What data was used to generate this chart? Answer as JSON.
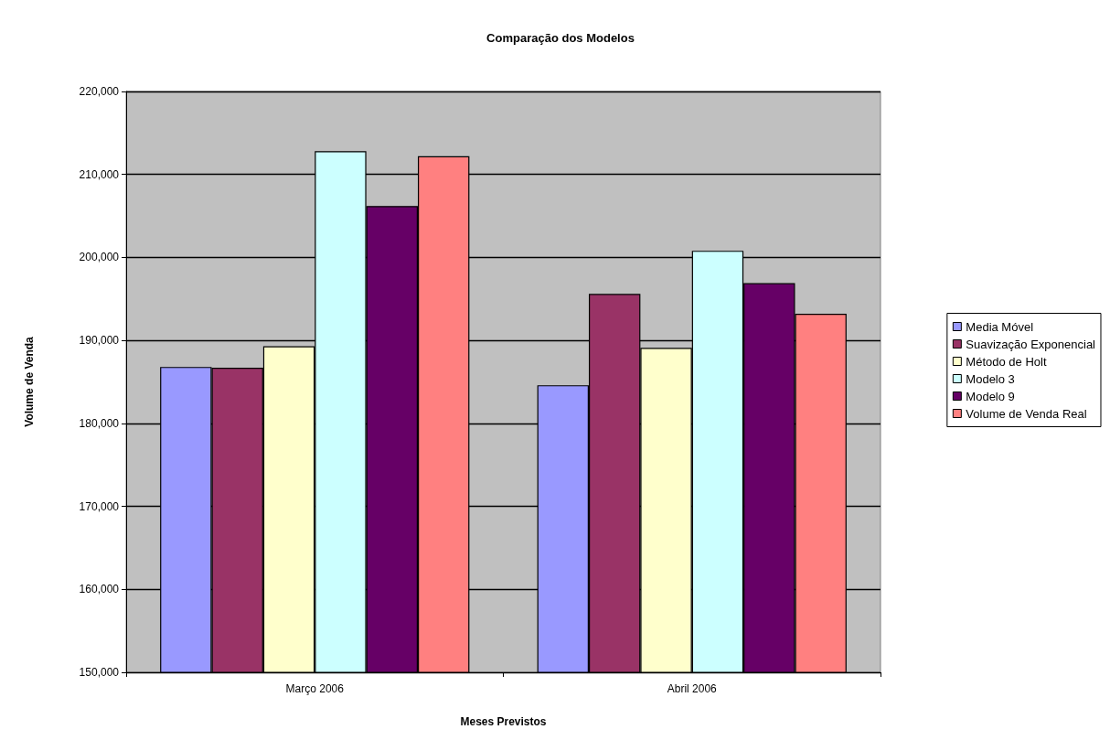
{
  "chart_data": {
    "type": "bar",
    "title": "Comparação dos Modelos",
    "xlabel": "Meses Previstos",
    "ylabel": "Volume de Venda",
    "categories": [
      "Março 2006",
      "Abril 2006"
    ],
    "series": [
      {
        "name": "Media Móvel",
        "color": "#9999ff",
        "values": [
          186800,
          184600
        ]
      },
      {
        "name": "Suavização Exponencial",
        "color": "#993366",
        "values": [
          186700,
          195600
        ]
      },
      {
        "name": "Método de Holt",
        "color": "#ffffcc",
        "values": [
          189300,
          189100
        ]
      },
      {
        "name": "Modelo 3",
        "color": "#ccffff",
        "values": [
          212800,
          200800
        ]
      },
      {
        "name": "Modelo 9",
        "color": "#660066",
        "values": [
          206200,
          196900
        ]
      },
      {
        "name": "Volume de Venda Real",
        "color": "#ff8080",
        "values": [
          212200,
          193200
        ]
      }
    ],
    "ylim": [
      150000,
      220000
    ],
    "yticks": [
      {
        "value": 150000,
        "label": "150,000"
      },
      {
        "value": 160000,
        "label": "160,000"
      },
      {
        "value": 170000,
        "label": "170,000"
      },
      {
        "value": 180000,
        "label": "180,000"
      },
      {
        "value": 190000,
        "label": "190,000"
      },
      {
        "value": 200000,
        "label": "200,000"
      },
      {
        "value": 210000,
        "label": "210,000"
      },
      {
        "value": 220000,
        "label": "220,000"
      }
    ],
    "grid": "y",
    "legend": "right"
  }
}
